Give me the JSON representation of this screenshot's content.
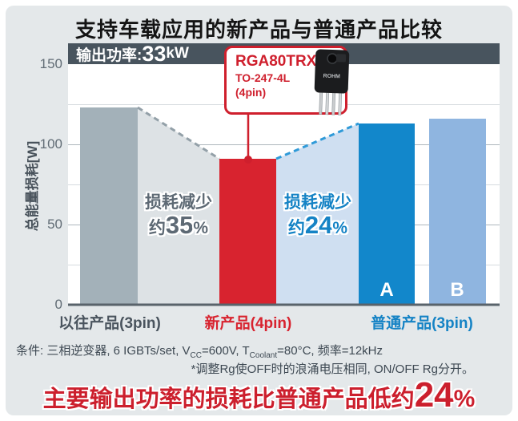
{
  "title": "支持车载应用的新产品与普通产品比较",
  "header": {
    "label": "输出功率:",
    "value": "33",
    "unit": "kW"
  },
  "callout": {
    "part_number": "RGA80TRX2E",
    "package": "TO-247-4L",
    "pins": "(4pin)",
    "chip_label": "ROHM"
  },
  "chart_data": {
    "type": "bar",
    "title": "支持车载应用的新产品与普通产品比较",
    "ylabel": "总能量损耗[W]",
    "ylim": [
      0,
      150
    ],
    "yticks": [
      0,
      50,
      100,
      150
    ],
    "grid_step": 25,
    "categories": [
      "以往产品(3pin)",
      "新产品(4pin)",
      "普通产品(3pin) A",
      "普通产品(3pin) B"
    ],
    "values": [
      123,
      91,
      113,
      116
    ],
    "bar_colors": [
      "#a3b1b9",
      "#d8232f",
      "#1287cb",
      "#8fb5e0"
    ],
    "bar_letters": [
      "",
      "",
      "A",
      "B"
    ],
    "axis_group_labels": {
      "prev": "以往产品(3pin)",
      "new": "新产品(4pin)",
      "common": "普通产品(3pin)"
    },
    "annotations": [
      {
        "line1": "损耗减少",
        "prefix": "约",
        "value": "35",
        "suffix": "%",
        "compares": "以往产品 → 新产品"
      },
      {
        "line1": "损耗减少",
        "prefix": "约",
        "value": "24",
        "suffix": "%",
        "compares": "新产品 → 普通产品"
      }
    ]
  },
  "colors": {
    "accent_red": "#cf1f2d",
    "accent_blue": "#1583c5",
    "gap_gray": "#dde2e5",
    "gap_blue": "#cfdff1",
    "dash_gray": "#93a0a8",
    "dash_blue": "#2f9ad8",
    "axis_line": "#59636b",
    "grid_major": "#aeb7bd",
    "grid_minor": "#d6dbdf",
    "header_bg": "#48545e",
    "panel_bg": "#e4e8ea"
  },
  "condition": {
    "p1": "条件: 三相逆变器, 6 IGBTs/set, V",
    "sub1": "CC",
    "p2": "=600V, T",
    "sub2": "Coolant",
    "p3": "=80°C, 频率=12kHz"
  },
  "note": "*调整Rg使OFF时的浪涌电压相同, ON/OFF Rg分开。",
  "headline": {
    "prefix": "主要输出功率的损耗比普通产品低约",
    "value": "24",
    "suffix": "%"
  }
}
